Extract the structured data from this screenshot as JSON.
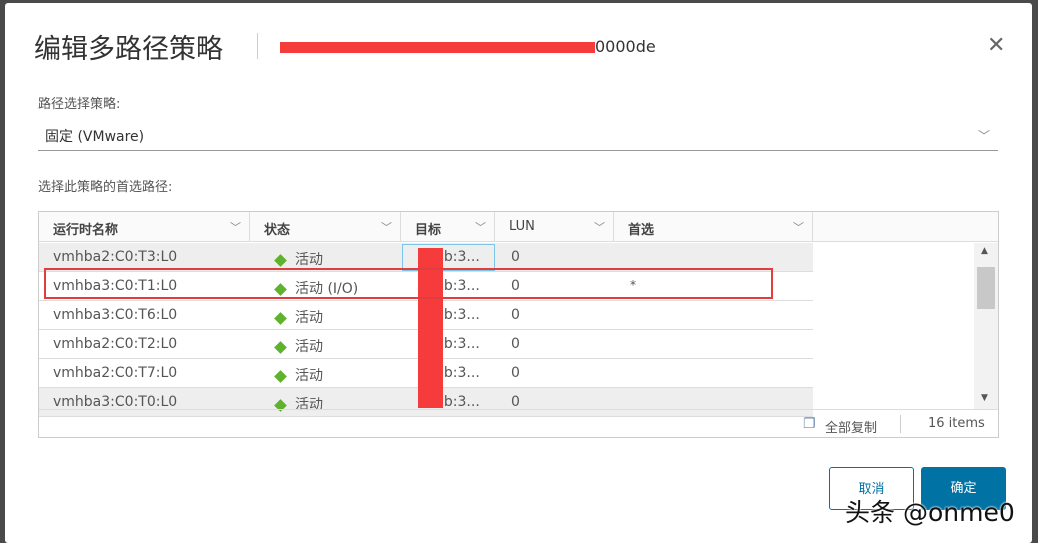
{
  "dialog": {
    "title": "编辑多路径策略",
    "subtitle_visible": "0000de",
    "close_icon": "close-icon"
  },
  "policy": {
    "label": "路径选择策略:",
    "value": "固定 (VMware)"
  },
  "paths": {
    "label": "选择此策略的首选路径:",
    "columns": [
      "运行时名称",
      "状态",
      "目标",
      "LUN",
      "首选"
    ],
    "rows": [
      {
        "name": "vmhba2:C0:T3:L0",
        "status": "活动",
        "target": "0b:3...",
        "lun": "0",
        "preferred": ""
      },
      {
        "name": "vmhba3:C0:T1:L0",
        "status": "活动 (I/O)",
        "target": "0b:3...",
        "lun": "0",
        "preferred": "*"
      },
      {
        "name": "vmhba3:C0:T6:L0",
        "status": "活动",
        "target": "0b:3...",
        "lun": "0",
        "preferred": ""
      },
      {
        "name": "vmhba2:C0:T2:L0",
        "status": "活动",
        "target": "0b:3...",
        "lun": "0",
        "preferred": ""
      },
      {
        "name": "vmhba2:C0:T7:L0",
        "status": "活动",
        "target": "0b:3...",
        "lun": "0",
        "preferred": ""
      },
      {
        "name": "vmhba3:C0:T0:L0",
        "status": "活动",
        "target": "0b:3...",
        "lun": "0",
        "preferred": ""
      }
    ],
    "copy_all": "全部复制",
    "count": "16 items"
  },
  "buttons": {
    "cancel": "取消",
    "ok": "确定"
  },
  "watermark": "头条 @onme0",
  "colors": {
    "primary": "#0072a3",
    "status_active": "#5fb22e",
    "highlight": "#e23c3c"
  }
}
